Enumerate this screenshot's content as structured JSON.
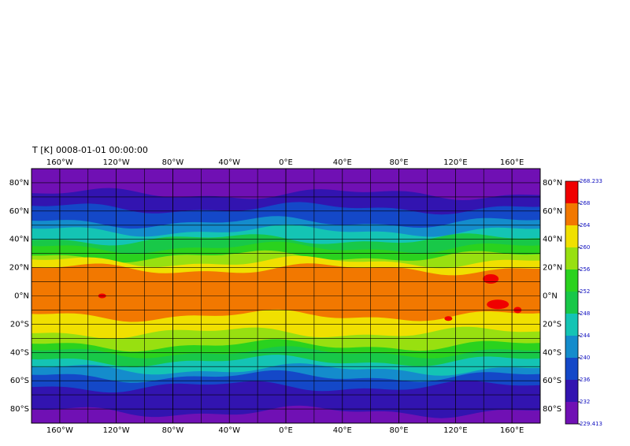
{
  "title": "T [K]",
  "timestamp": "0008-01-01 00:00:00",
  "map": {
    "xlim": [
      -180,
      180
    ],
    "ylim": [
      -90,
      90
    ],
    "xticks": [
      {
        "value": -160,
        "label": "160°W"
      },
      {
        "value": -120,
        "label": "120°W"
      },
      {
        "value": -80,
        "label": "80°W"
      },
      {
        "value": -40,
        "label": "40°W"
      },
      {
        "value": 0,
        "label": "0°E"
      },
      {
        "value": 40,
        "label": "40°E"
      },
      {
        "value": 80,
        "label": "80°E"
      },
      {
        "value": 120,
        "label": "120°E"
      },
      {
        "value": 160,
        "label": "160°E"
      }
    ],
    "yticks": [
      {
        "value": 80,
        "label": "80°N"
      },
      {
        "value": 60,
        "label": "60°N"
      },
      {
        "value": 40,
        "label": "40°N"
      },
      {
        "value": 20,
        "label": "20°N"
      },
      {
        "value": 0,
        "label": "0°N"
      },
      {
        "value": -20,
        "label": "20°S"
      },
      {
        "value": -40,
        "label": "40°S"
      },
      {
        "value": -60,
        "label": "60°S"
      },
      {
        "value": -80,
        "label": "80°S"
      }
    ]
  },
  "colorbar": {
    "levels": [
      229.413,
      232,
      236,
      240,
      244,
      248,
      252,
      256,
      260,
      264,
      268,
      268.233
    ],
    "colors": [
      "#7010b4",
      "#3214b0",
      "#1448c8",
      "#148ccc",
      "#14c4b4",
      "#18c848",
      "#2ad21e",
      "#98e010",
      "#f0e000",
      "#f27800",
      "#f00000"
    ]
  }
}
